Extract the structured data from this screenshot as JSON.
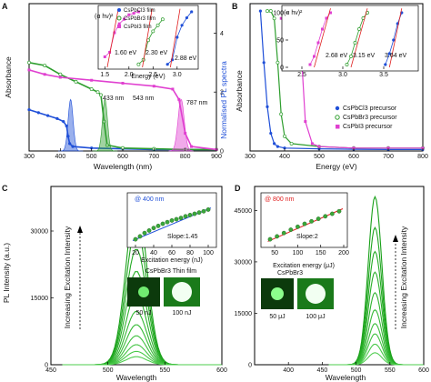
{
  "chart_data": [
    {
      "panel": "A",
      "type": "line",
      "xlabel": "Wavelength (nm)",
      "ylabel": "Absorbance",
      "y2label": "Normalised PL spectra",
      "xlim": [
        300,
        900
      ],
      "xticks": [
        "300",
        "400",
        "500",
        "600",
        "700",
        "800",
        "900"
      ],
      "y2ticks": [
        "0",
        "2",
        "4"
      ],
      "annotations": [
        "433 nm",
        "543 nm",
        "787 nm"
      ],
      "colors": {
        "CsPbCl3": "#1f4fd8",
        "CsPbBr3": "#2e9e2e",
        "CsPbI3": "#e040d0"
      },
      "series": [
        {
          "name": "CsPbCl3",
          "x": [
            300,
            330,
            360,
            390,
            410,
            420,
            425,
            430,
            440,
            500,
            600,
            700,
            800,
            900
          ],
          "y": [
            0.28,
            0.26,
            0.24,
            0.22,
            0.2,
            0.17,
            0.1,
            0.05,
            0.03,
            0.02,
            0.015,
            0.01,
            0.01,
            0.01
          ]
        },
        {
          "name": "CsPbBr3",
          "x": [
            300,
            350,
            400,
            450,
            500,
            520,
            530,
            540,
            550,
            600,
            700,
            800,
            900
          ],
          "y": [
            0.6,
            0.58,
            0.52,
            0.47,
            0.42,
            0.4,
            0.38,
            0.2,
            0.04,
            0.02,
            0.015,
            0.01,
            0.01
          ]
        },
        {
          "name": "CsPbI3",
          "x": [
            300,
            350,
            400,
            500,
            600,
            700,
            760,
            780,
            800,
            820,
            900
          ],
          "y": [
            0.55,
            0.52,
            0.5,
            0.48,
            0.46,
            0.44,
            0.42,
            0.35,
            0.12,
            0.03,
            0.01
          ]
        }
      ],
      "pl_peaks": [
        433,
        543,
        787
      ],
      "inset": {
        "xlabel": "Energy (eV)",
        "ylabel": "(α hν)²",
        "xticks": [
          "1.5",
          "2.0",
          "2.5",
          "3.0"
        ],
        "labels": [
          "1.60 eV",
          "2.30 eV",
          "2.88 eV"
        ],
        "legend": [
          "CsPbCl3 film",
          "CsPbBr3 film",
          "CsPbI3 film"
        ],
        "series": [
          {
            "name": "CsPbI3 film",
            "x": [
              1.5,
              1.6,
              1.7,
              1.8,
              1.9,
              2.0,
              2.1,
              2.2
            ],
            "y": [
              0.7,
              1.0,
              2.3,
              2.9,
              3.2,
              3.5,
              3.6,
              3.7
            ]
          },
          {
            "name": "CsPbBr3 film",
            "x": [
              2.2,
              2.3,
              2.4,
              2.5,
              2.6,
              2.7
            ],
            "y": [
              0.2,
              0.5,
              1.8,
              2.4,
              2.8,
              3.2
            ]
          },
          {
            "name": "CsPbCl3 film",
            "x": [
              2.8,
              2.9,
              3.0,
              3.1,
              3.2,
              3.3
            ],
            "y": [
              0.2,
              0.5,
              2.0,
              2.8,
              3.3,
              3.7
            ]
          }
        ]
      }
    },
    {
      "panel": "B",
      "type": "line",
      "xlabel": "Energy (eV)",
      "ylabel": "Absorbance",
      "xlim": [
        300,
        800
      ],
      "xticks": [
        "300",
        "400",
        "500",
        "600",
        "700",
        "800"
      ],
      "legend": [
        "CsPbCl3 precursor",
        "CsPbBr3 precursor",
        "CsPbI3 precursor"
      ],
      "series": [
        {
          "name": "CsPbCl3 precursor",
          "x": [
            330,
            340,
            350,
            360,
            370,
            380,
            400,
            500,
            600,
            700,
            800
          ],
          "y": [
            0.95,
            0.6,
            0.3,
            0.12,
            0.05,
            0.03,
            0.02,
            0.015,
            0.012,
            0.01,
            0.01
          ]
        },
        {
          "name": "CsPbBr3 precursor",
          "x": [
            350,
            360,
            370,
            380,
            390,
            400,
            420,
            500,
            600,
            700,
            800
          ],
          "y": [
            0.95,
            0.95,
            0.9,
            0.6,
            0.25,
            0.1,
            0.05,
            0.03,
            0.02,
            0.02,
            0.02
          ]
        },
        {
          "name": "CsPbI3 precursor",
          "x": [
            390,
            400,
            420,
            440,
            450,
            460,
            480,
            500,
            600,
            700,
            800
          ],
          "y": [
            0.9,
            0.9,
            0.9,
            0.85,
            0.6,
            0.2,
            0.05,
            0.03,
            0.02,
            0.02,
            0.02
          ]
        }
      ],
      "inset": {
        "ylabel": "(α hν)²",
        "xticks": [
          "2.5",
          "3.0",
          "3.5"
        ],
        "yticks": [
          "0",
          "50",
          "100"
        ],
        "labels": [
          "2.68 eV",
          "3.15 eV",
          "3.64 eV"
        ]
      }
    },
    {
      "panel": "C",
      "type": "line",
      "xlabel": "Wavelength",
      "ylabel": "PL Intensity (a.u.)",
      "xlim": [
        450,
        600
      ],
      "xticks": [
        "450",
        "500",
        "550",
        "600"
      ],
      "yticks": [
        "0",
        "15000",
        "30000"
      ],
      "ylim": [
        0,
        40000
      ],
      "arrow_label": "Increasing Excitation Intensity",
      "peak_x": 525,
      "peak_values": [
        37000,
        31000,
        26000,
        21000,
        16000,
        12000,
        9000,
        6500,
        4500,
        3000,
        1800
      ],
      "inset": {
        "title": "@ 400 nm",
        "xlabel": "Excitation energy (nJ)",
        "xticks": [
          "20",
          "40",
          "60",
          "80",
          "100"
        ],
        "slope": "Slope:1.45",
        "x": [
          20,
          25,
          30,
          35,
          40,
          45,
          50,
          55,
          60,
          65,
          70,
          75,
          80,
          85,
          90,
          95,
          100
        ],
        "y": [
          0.15,
          0.22,
          0.3,
          0.36,
          0.42,
          0.47,
          0.52,
          0.56,
          0.6,
          0.63,
          0.66,
          0.7,
          0.73,
          0.76,
          0.79,
          0.82,
          0.86
        ]
      },
      "photo_title": "CsPbBr3 Thin film",
      "photo_labels": [
        "50 nJ",
        "100 nJ"
      ]
    },
    {
      "panel": "D",
      "type": "line",
      "xlabel": "Wavelength",
      "xlim": [
        350,
        600
      ],
      "xticks": [
        "400",
        "450",
        "500",
        "550",
        "600"
      ],
      "yticks": [
        "0",
        "15000",
        "30000",
        "45000"
      ],
      "ylim": [
        0,
        52000
      ],
      "arrow_label": "Increasing Excitation Intensity",
      "peak_x": 528,
      "peak_values": [
        49000,
        40000,
        33000,
        27000,
        21000,
        16000,
        12000,
        9000,
        6000,
        3500
      ],
      "inset": {
        "title": "@ 800 nm",
        "xlabel": "Excitation energy (μJ)",
        "xticks": [
          "50",
          "100",
          "150",
          "200"
        ],
        "slope": "Slope:2",
        "x": [
          40,
          55,
          70,
          85,
          100,
          115,
          130,
          145,
          160,
          175,
          190
        ],
        "y": [
          0.15,
          0.22,
          0.3,
          0.38,
          0.45,
          0.52,
          0.58,
          0.64,
          0.7,
          0.76,
          0.82
        ]
      },
      "photo_title": "CsPbBr3",
      "photo_labels": [
        "50 μJ",
        "100 μJ"
      ]
    }
  ],
  "panel_labels": [
    "A",
    "B",
    "C",
    "D"
  ]
}
